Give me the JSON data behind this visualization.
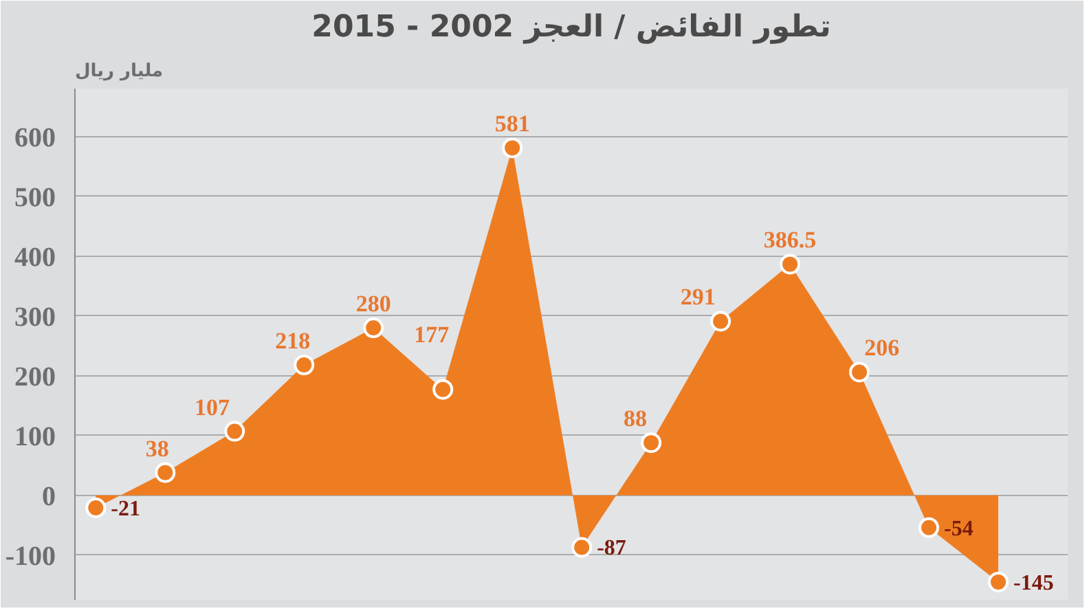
{
  "chart_data": {
    "type": "area",
    "title": "تطور الفائض / العجز 2002 - 2015",
    "ylabel": "مليار ريال",
    "categories": [
      null,
      null,
      null,
      null,
      null,
      null,
      null,
      null,
      null,
      null,
      null,
      null,
      null,
      null
    ],
    "values": [
      -21,
      38,
      107,
      218,
      280,
      177,
      581,
      -87,
      88,
      291,
      386.5,
      206,
      -54,
      -145
    ],
    "color": "#ee7d22",
    "ylim": [
      -175,
      680
    ],
    "yticks": [
      -100,
      0,
      100,
      200,
      300,
      400,
      500,
      600
    ],
    "grid": "y",
    "marker": "circle",
    "data_labels": true,
    "tick_labels": "y"
  }
}
